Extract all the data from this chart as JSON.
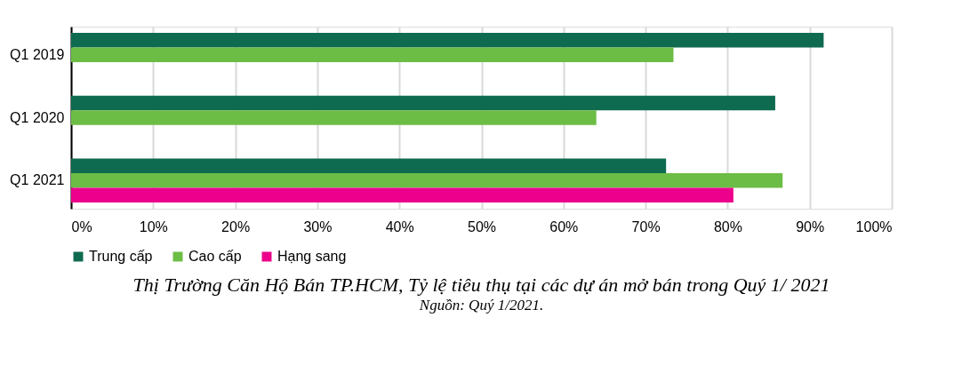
{
  "chart_data": {
    "type": "bar",
    "orientation": "horizontal",
    "title": "Thị Trường Căn Hộ Bán TP.HCM,  Tỷ lệ tiêu thụ tại các dự án mở bán trong Quý 1/ 2021",
    "annotations": [
      "Nguồn: Quý 1/2021."
    ],
    "categories": [
      "Q1 2019",
      "Q1 2020",
      "Q1 2021"
    ],
    "series": [
      {
        "name": "Trung cấp",
        "color": "#0e6b50",
        "values": [
          91.7,
          85.8,
          72.5
        ]
      },
      {
        "name": "Cao cấp",
        "color": "#6cbd45",
        "values": [
          73.4,
          64.0,
          86.7
        ]
      },
      {
        "name": "Hạng sang",
        "color": "#ec008c",
        "values": [
          null,
          null,
          80.7
        ]
      }
    ],
    "xlim": [
      0,
      100
    ],
    "xticks": [
      {
        "value": 0,
        "label": "0%"
      },
      {
        "value": 10,
        "label": "10%"
      },
      {
        "value": 20,
        "label": "20%"
      },
      {
        "value": 30,
        "label": "30%"
      },
      {
        "value": 40,
        "label": "40%"
      },
      {
        "value": 50,
        "label": "50%"
      },
      {
        "value": 60,
        "label": "60%"
      },
      {
        "value": 70,
        "label": "70%"
      },
      {
        "value": 80,
        "label": "80%"
      },
      {
        "value": 90,
        "label": "90%"
      },
      {
        "value": 100,
        "label": "100%"
      }
    ],
    "grid": "x",
    "legend": "bottom"
  }
}
